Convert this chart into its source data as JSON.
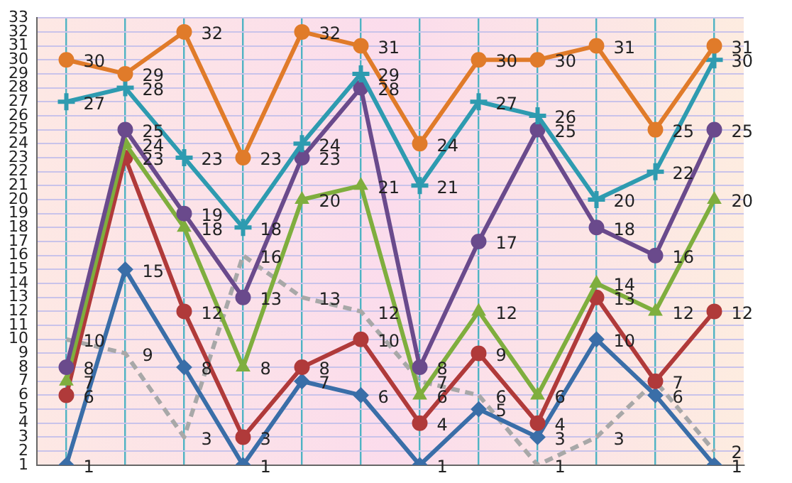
{
  "chart_data": {
    "type": "line",
    "categories": [
      null,
      null,
      null,
      null,
      null,
      null,
      null,
      null,
      null,
      null,
      null,
      null
    ],
    "series": [
      {
        "color": "#e07b2a",
        "marker": "circle",
        "values": [
          30,
          29,
          32,
          23,
          32,
          31,
          24,
          30,
          30,
          31,
          25,
          31
        ]
      },
      {
        "color": "#2e9bb0",
        "marker": "cross",
        "values": [
          27,
          28,
          23,
          18,
          24,
          29,
          21,
          27,
          26,
          20,
          22,
          30
        ]
      },
      {
        "color": "#6a4a8c",
        "marker": "circle",
        "values": [
          8,
          25,
          19,
          13,
          23,
          28,
          8,
          17,
          25,
          18,
          16,
          25
        ]
      },
      {
        "color": "#7fae3e",
        "marker": "triangle",
        "values": [
          7,
          24,
          18,
          8,
          20,
          21,
          6,
          12,
          6,
          14,
          12,
          20
        ]
      },
      {
        "color": "#b03a3a",
        "marker": "circle",
        "values": [
          6,
          23,
          12,
          3,
          8,
          10,
          4,
          9,
          4,
          13,
          7,
          12
        ]
      },
      {
        "color": "#3a6ea8",
        "marker": "diamond",
        "values": [
          1,
          15,
          8,
          1,
          7,
          6,
          1,
          5,
          3,
          10,
          6,
          1
        ]
      },
      {
        "color": "#a8a8a8",
        "marker": "none",
        "line_style": "dashed",
        "values": [
          10,
          9,
          3,
          16,
          13,
          12,
          7,
          6,
          1,
          3,
          7,
          2
        ],
        "value_labels": [
          "10",
          "9",
          "3",
          "16",
          "13",
          "12",
          "7",
          "6",
          "1",
          "3",
          null,
          "2"
        ]
      }
    ],
    "ylim": [
      1,
      33
    ],
    "yticks": [
      1,
      2,
      3,
      4,
      5,
      6,
      7,
      8,
      9,
      10,
      11,
      12,
      13,
      14,
      15,
      16,
      17,
      18,
      19,
      20,
      21,
      22,
      23,
      24,
      25,
      26,
      27,
      28,
      29,
      30,
      31,
      32,
      33
    ],
    "grid": true,
    "legend": false,
    "tick_labels": "y",
    "data_labels": true
  }
}
